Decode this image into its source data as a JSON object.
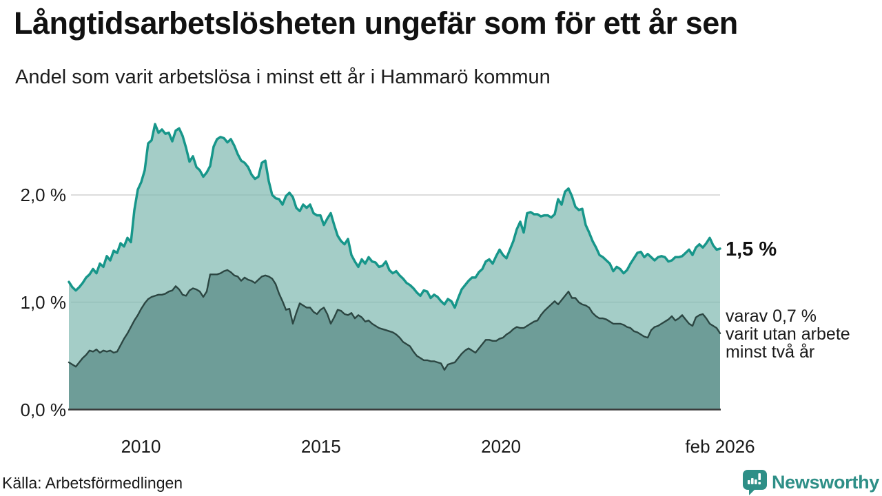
{
  "header": {
    "title": "Långtidsarbetslösheten ungefär som för ett år sen",
    "subtitle": "Andel som varit arbetslösa i minst ett år i Hammarö kommun"
  },
  "annotations": {
    "latest_value": "1,5 %",
    "secondary_lines": [
      "varav 0,7 %",
      "varit utan arbete",
      "minst två år"
    ]
  },
  "footer": {
    "source": "Källa: Arbetsförmedlingen",
    "logo_text": "Newsworthy"
  },
  "colors": {
    "accent_line": "#17968a",
    "area_light": "rgba(125,184,175,0.70)",
    "area_dark": "#6e9d98",
    "dark_line": "#2c4642",
    "grid": "#dcdcdc",
    "axis": "#3a3a3a",
    "brand": "#2e8f87"
  },
  "chart_data": {
    "type": "area",
    "title": "Långtidsarbetslösheten ungefär som för ett år sen",
    "subtitle": "Andel som varit arbetslösa i minst ett år i Hammarö kommun",
    "unit": "%",
    "x_start": 2008.0,
    "x_end": 2026.083,
    "ylim": [
      0,
      2.8
    ],
    "grid": true,
    "x_ticks": [
      {
        "label": "2010",
        "year": 2010
      },
      {
        "label": "2015",
        "year": 2015
      },
      {
        "label": "2020",
        "year": 2020
      },
      {
        "label": "feb 2026",
        "year": 2026.083
      }
    ],
    "y_ticks": [
      {
        "label": "0,0 %",
        "value": 0
      },
      {
        "label": "1,0 %",
        "value": 1
      },
      {
        "label": "2,0 %",
        "value": 2
      }
    ],
    "latest": {
      "long_term": 1.5,
      "very_long_term": 0.7
    },
    "series": [
      {
        "name": "Arbetslösa minst ett år",
        "values": [
          1.19,
          1.14,
          1.11,
          1.14,
          1.18,
          1.23,
          1.26,
          1.31,
          1.27,
          1.36,
          1.33,
          1.43,
          1.39,
          1.48,
          1.46,
          1.55,
          1.52,
          1.6,
          1.56,
          1.86,
          2.05,
          2.12,
          2.23,
          2.48,
          2.51,
          2.66,
          2.58,
          2.61,
          2.57,
          2.58,
          2.5,
          2.6,
          2.62,
          2.55,
          2.44,
          2.31,
          2.36,
          2.26,
          2.23,
          2.17,
          2.21,
          2.27,
          2.45,
          2.52,
          2.54,
          2.53,
          2.49,
          2.52,
          2.46,
          2.38,
          2.32,
          2.3,
          2.26,
          2.19,
          2.15,
          2.17,
          2.3,
          2.32,
          2.13,
          2.0,
          1.97,
          1.96,
          1.91,
          1.99,
          2.02,
          1.98,
          1.88,
          1.85,
          1.91,
          1.88,
          1.91,
          1.83,
          1.81,
          1.81,
          1.72,
          1.78,
          1.83,
          1.72,
          1.62,
          1.57,
          1.54,
          1.59,
          1.44,
          1.38,
          1.33,
          1.4,
          1.36,
          1.42,
          1.38,
          1.37,
          1.33,
          1.34,
          1.38,
          1.3,
          1.27,
          1.29,
          1.25,
          1.22,
          1.18,
          1.16,
          1.13,
          1.09,
          1.06,
          1.11,
          1.1,
          1.04,
          1.07,
          1.05,
          1.01,
          0.98,
          1.03,
          1.01,
          0.95,
          1.04,
          1.12,
          1.16,
          1.2,
          1.23,
          1.23,
          1.28,
          1.31,
          1.38,
          1.4,
          1.36,
          1.43,
          1.49,
          1.44,
          1.41,
          1.49,
          1.57,
          1.68,
          1.75,
          1.65,
          1.83,
          1.84,
          1.82,
          1.82,
          1.8,
          1.81,
          1.81,
          1.79,
          1.82,
          1.96,
          1.91,
          2.03,
          2.06,
          1.99,
          1.89,
          1.86,
          1.87,
          1.72,
          1.65,
          1.57,
          1.51,
          1.44,
          1.42,
          1.39,
          1.36,
          1.29,
          1.33,
          1.31,
          1.27,
          1.3,
          1.36,
          1.41,
          1.46,
          1.47,
          1.42,
          1.45,
          1.42,
          1.39,
          1.42,
          1.43,
          1.42,
          1.38,
          1.39,
          1.42,
          1.42,
          1.43,
          1.46,
          1.49,
          1.44,
          1.51,
          1.54,
          1.51,
          1.55,
          1.6,
          1.53,
          1.49,
          1.5
        ]
      },
      {
        "name": "Utan arbete minst två år",
        "values": [
          0.44,
          0.42,
          0.4,
          0.44,
          0.48,
          0.51,
          0.55,
          0.54,
          0.56,
          0.53,
          0.55,
          0.54,
          0.55,
          0.53,
          0.54,
          0.6,
          0.66,
          0.71,
          0.77,
          0.83,
          0.88,
          0.94,
          0.99,
          1.03,
          1.05,
          1.06,
          1.07,
          1.07,
          1.08,
          1.1,
          1.11,
          1.15,
          1.12,
          1.07,
          1.06,
          1.11,
          1.13,
          1.12,
          1.1,
          1.05,
          1.1,
          1.26,
          1.26,
          1.26,
          1.27,
          1.29,
          1.3,
          1.28,
          1.25,
          1.24,
          1.2,
          1.23,
          1.21,
          1.2,
          1.18,
          1.21,
          1.24,
          1.25,
          1.24,
          1.22,
          1.17,
          1.08,
          1.01,
          0.93,
          0.94,
          0.8,
          0.9,
          0.99,
          0.97,
          0.95,
          0.95,
          0.91,
          0.89,
          0.93,
          0.95,
          0.89,
          0.8,
          0.86,
          0.93,
          0.92,
          0.89,
          0.88,
          0.9,
          0.85,
          0.88,
          0.86,
          0.82,
          0.83,
          0.8,
          0.78,
          0.76,
          0.75,
          0.74,
          0.73,
          0.72,
          0.7,
          0.67,
          0.63,
          0.61,
          0.59,
          0.54,
          0.5,
          0.48,
          0.46,
          0.46,
          0.45,
          0.45,
          0.44,
          0.43,
          0.37,
          0.42,
          0.43,
          0.44,
          0.48,
          0.52,
          0.55,
          0.57,
          0.55,
          0.53,
          0.57,
          0.61,
          0.65,
          0.65,
          0.64,
          0.64,
          0.66,
          0.67,
          0.7,
          0.72,
          0.75,
          0.77,
          0.76,
          0.76,
          0.78,
          0.8,
          0.82,
          0.83,
          0.88,
          0.92,
          0.95,
          0.98,
          1.01,
          0.98,
          1.02,
          1.06,
          1.1,
          1.04,
          1.04,
          1.0,
          0.98,
          0.97,
          0.95,
          0.9,
          0.87,
          0.85,
          0.85,
          0.84,
          0.82,
          0.8,
          0.8,
          0.8,
          0.79,
          0.77,
          0.76,
          0.73,
          0.72,
          0.7,
          0.68,
          0.67,
          0.74,
          0.77,
          0.78,
          0.8,
          0.82,
          0.84,
          0.87,
          0.83,
          0.85,
          0.88,
          0.84,
          0.8,
          0.78,
          0.86,
          0.88,
          0.89,
          0.85,
          0.8,
          0.78,
          0.76,
          0.71
        ]
      }
    ]
  }
}
